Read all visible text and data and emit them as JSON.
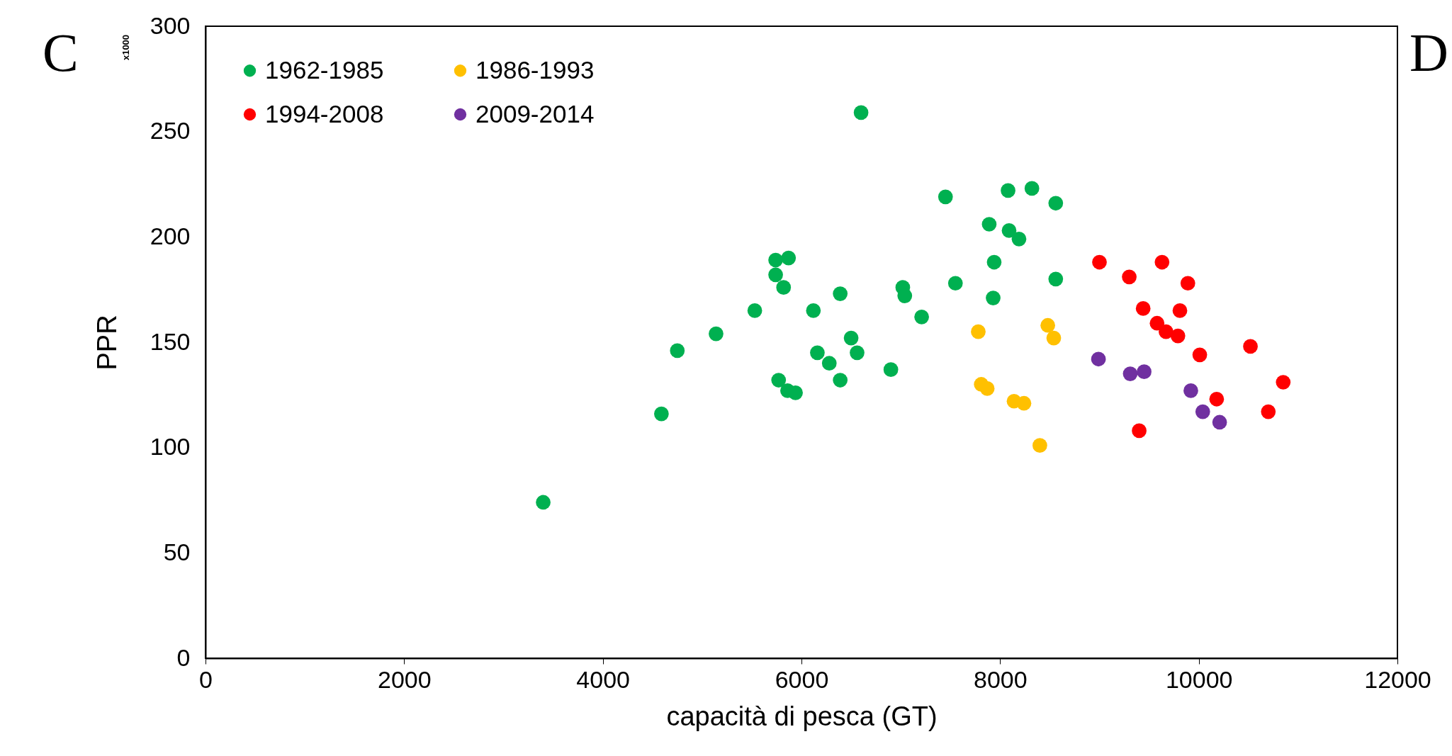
{
  "chart_data": {
    "type": "scatter",
    "xlabel": "capacità di pesca (GT)",
    "ylabel": "PPR",
    "annotations": [
      "C",
      "D",
      "x1000"
    ],
    "xlim": [
      0,
      12000
    ],
    "xticks": [
      0,
      2000,
      4000,
      6000,
      8000,
      10000,
      12000
    ],
    "ylim": [
      0,
      300
    ],
    "yticks": [
      0,
      50,
      100,
      150,
      200,
      250,
      300
    ],
    "grid": false,
    "legend": "top left",
    "marker": "circle",
    "series": [
      {
        "name": "1962-1985",
        "color": "#00b050",
        "x": [
          3400,
          4590,
          4750,
          5140,
          5530,
          5740,
          5870,
          5740,
          5820,
          5770,
          5860,
          5940,
          6120,
          6390,
          6160,
          6280,
          6390,
          6500,
          6560,
          6600,
          6900,
          7020,
          7040,
          7210,
          7450,
          7550,
          7890,
          7940,
          7930,
          8080,
          8090,
          8190,
          8320,
          8560,
          8560
        ],
        "values": [
          74,
          116,
          146,
          154,
          165,
          189,
          190,
          182,
          176,
          132,
          127,
          126,
          165,
          173,
          145,
          140,
          132,
          152,
          145,
          259,
          137,
          176,
          172,
          162,
          219,
          178,
          206,
          188,
          171,
          222,
          203,
          199,
          223,
          216,
          180
        ]
      },
      {
        "name": "1986-1993",
        "color": "#ffc000",
        "x": [
          7780,
          7810,
          7870,
          8140,
          8240,
          8400,
          8480,
          8540
        ],
        "values": [
          155,
          130,
          128,
          122,
          121,
          101,
          158,
          152
        ]
      },
      {
        "name": "1994-2008",
        "color": "#ff0000",
        "x": [
          9000,
          9300,
          9440,
          9400,
          9580,
          9630,
          9670,
          9790,
          9810,
          9890,
          10010,
          10180,
          10520,
          10700,
          10850
        ],
        "values": [
          188,
          181,
          166,
          108,
          159,
          188,
          155,
          153,
          165,
          178,
          144,
          123,
          148,
          117,
          131
        ]
      },
      {
        "name": "2009-2014",
        "color": "#7030a0",
        "x": [
          8990,
          9310,
          9450,
          9920,
          10040,
          10210
        ],
        "values": [
          142,
          135,
          136,
          127,
          117,
          112
        ]
      }
    ]
  }
}
